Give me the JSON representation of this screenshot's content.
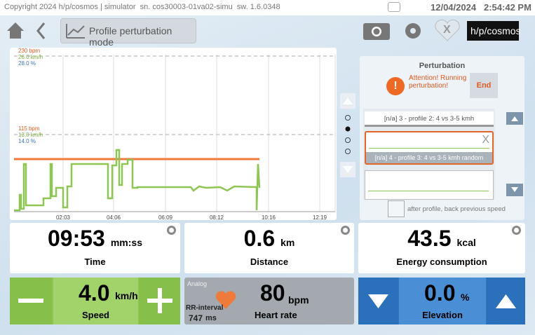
{
  "status_bar": {
    "copyright": "Copyright 2024 h/p/cosmos | simulator  sn. cos30003-01va02-simu  sw. 1.6.0348",
    "date": "12/04/2024",
    "time": "2:54:42 PM"
  },
  "toolbar": {
    "mode_button": "Profile perturbation mode",
    "logo": "h/p/cosmos",
    "heart_badge": "X"
  },
  "graph": {
    "top_labels": [
      "230 bpm",
      "26.0 km/h",
      "28.0 %"
    ],
    "mid_labels": [
      "115 bpm",
      "13.0 km/h",
      "14.0 %"
    ],
    "x_labels": [
      "02:03",
      "04:06",
      "06:09",
      "08:12",
      "10:16",
      "12:19"
    ]
  },
  "perturbation": {
    "title": "Perturbation",
    "warning": "Attention! Running perturbation!",
    "end_button": "End",
    "profiles": [
      "[n/a] 3 - profile 2: 4 vs 3-5 kmh",
      "[n/a] 4 - profile 3: 4 vs 3-5 kmh random"
    ],
    "remove": "X",
    "checkbox_label": "after profile, back previous speed"
  },
  "metrics": [
    {
      "value": "09:53",
      "unit": "mm:ss",
      "label": "Time"
    },
    {
      "value": "0.6",
      "unit": "km",
      "label": "Distance"
    },
    {
      "value": "43.5",
      "unit": "kcal",
      "label": "Energy consumption"
    }
  ],
  "speed": {
    "value": "4.0",
    "unit": "km/h",
    "label": "Speed"
  },
  "heart": {
    "source": "Analog",
    "value": "80",
    "unit": "bpm",
    "label": "Heart rate",
    "rr_label": "RR-interval",
    "rr_value": "747",
    "rr_unit": "ms"
  },
  "elevation": {
    "value": "0.0",
    "unit": "%",
    "label": "Elevation"
  }
}
